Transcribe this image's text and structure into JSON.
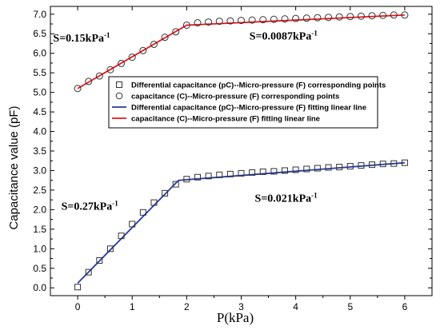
{
  "chart_data": {
    "type": "scatter",
    "xlabel": "P(kPa)",
    "ylabel": "Capacitance value (pF)",
    "xlim": [
      -0.5,
      6.5
    ],
    "ylim": [
      -0.2,
      7.2
    ],
    "xticks": [
      0,
      1,
      2,
      3,
      4,
      5,
      6
    ],
    "yticks": [
      0.0,
      0.5,
      1.0,
      1.5,
      2.0,
      2.5,
      3.0,
      3.5,
      4.0,
      4.5,
      5.0,
      5.5,
      6.0,
      6.5,
      7.0
    ],
    "ytick_labels": [
      "0.0",
      "0.5",
      "1.0",
      "1.5",
      "2.0",
      "2.5",
      "3.0",
      "3.5",
      "4.0",
      "4.5",
      "5.0",
      "5.5",
      "6.0",
      "6.5",
      "7.0"
    ],
    "xtick_labels": [
      "0",
      "1",
      "2",
      "3",
      "4",
      "5",
      "6"
    ],
    "grid": false,
    "legend_position": "center-right",
    "series": [
      {
        "name": "Differential capacitance (pC)--Micro-pressure (F) corresponding points",
        "marker": "square",
        "color": "#333333",
        "x": [
          0,
          0.2,
          0.4,
          0.6,
          0.8,
          1.0,
          1.2,
          1.4,
          1.6,
          1.8,
          2.0,
          2.2,
          2.4,
          2.6,
          2.8,
          3.0,
          3.2,
          3.4,
          3.6,
          3.8,
          4.0,
          4.2,
          4.4,
          4.6,
          4.8,
          5.0,
          5.2,
          5.4,
          5.6,
          5.8,
          6.0
        ],
        "y": [
          0.02,
          0.4,
          0.7,
          1.0,
          1.33,
          1.63,
          1.93,
          2.18,
          2.42,
          2.65,
          2.78,
          2.83,
          2.86,
          2.89,
          2.91,
          2.93,
          2.95,
          2.97,
          2.98,
          3.0,
          3.02,
          3.04,
          3.06,
          3.08,
          3.09,
          3.11,
          3.13,
          3.15,
          3.17,
          3.18,
          3.2
        ]
      },
      {
        "name": "capacitance (C)--Micro-pressure (F) corresponding points",
        "marker": "circle",
        "color": "#333333",
        "x": [
          0,
          0.2,
          0.4,
          0.6,
          0.8,
          1.0,
          1.2,
          1.4,
          1.6,
          1.8,
          2.0,
          2.2,
          2.4,
          2.6,
          2.8,
          3.0,
          3.2,
          3.4,
          3.6,
          3.8,
          4.0,
          4.2,
          4.4,
          4.6,
          4.8,
          5.0,
          5.2,
          5.4,
          5.6,
          5.8,
          6.0
        ],
        "y": [
          5.1,
          5.28,
          5.42,
          5.58,
          5.74,
          5.9,
          6.07,
          6.23,
          6.41,
          6.55,
          6.72,
          6.78,
          6.8,
          6.82,
          6.83,
          6.84,
          6.85,
          6.86,
          6.87,
          6.88,
          6.89,
          6.9,
          6.91,
          6.92,
          6.93,
          6.94,
          6.95,
          6.96,
          6.97,
          6.98,
          6.98
        ]
      },
      {
        "name": "Differential capacitance (pC)--Micro-pressure (F) fitting linear line",
        "line": true,
        "color": "#2a3a9c",
        "x": [
          0,
          1.85,
          6.0
        ],
        "y": [
          0.12,
          2.75,
          3.2
        ]
      },
      {
        "name": "capacitance (C)--Micro-pressure (F) fitting linear line",
        "line": true,
        "color": "#e8141c",
        "x": [
          0,
          2.0,
          6.0
        ],
        "y": [
          5.1,
          6.72,
          6.98
        ]
      }
    ],
    "annotations": [
      {
        "text": "S=0.15kPa",
        "sup": "-1",
        "x": -0.45,
        "y": 6.3
      },
      {
        "text": "S=0.0087kPa",
        "sup": "-1",
        "x": 3.15,
        "y": 6.35
      },
      {
        "text": "S=0.27kPa",
        "sup": "-1",
        "x": -0.3,
        "y": 2.0
      },
      {
        "text": "S=0.021kPa",
        "sup": "-1",
        "x": 3.25,
        "y": 2.2
      }
    ]
  }
}
